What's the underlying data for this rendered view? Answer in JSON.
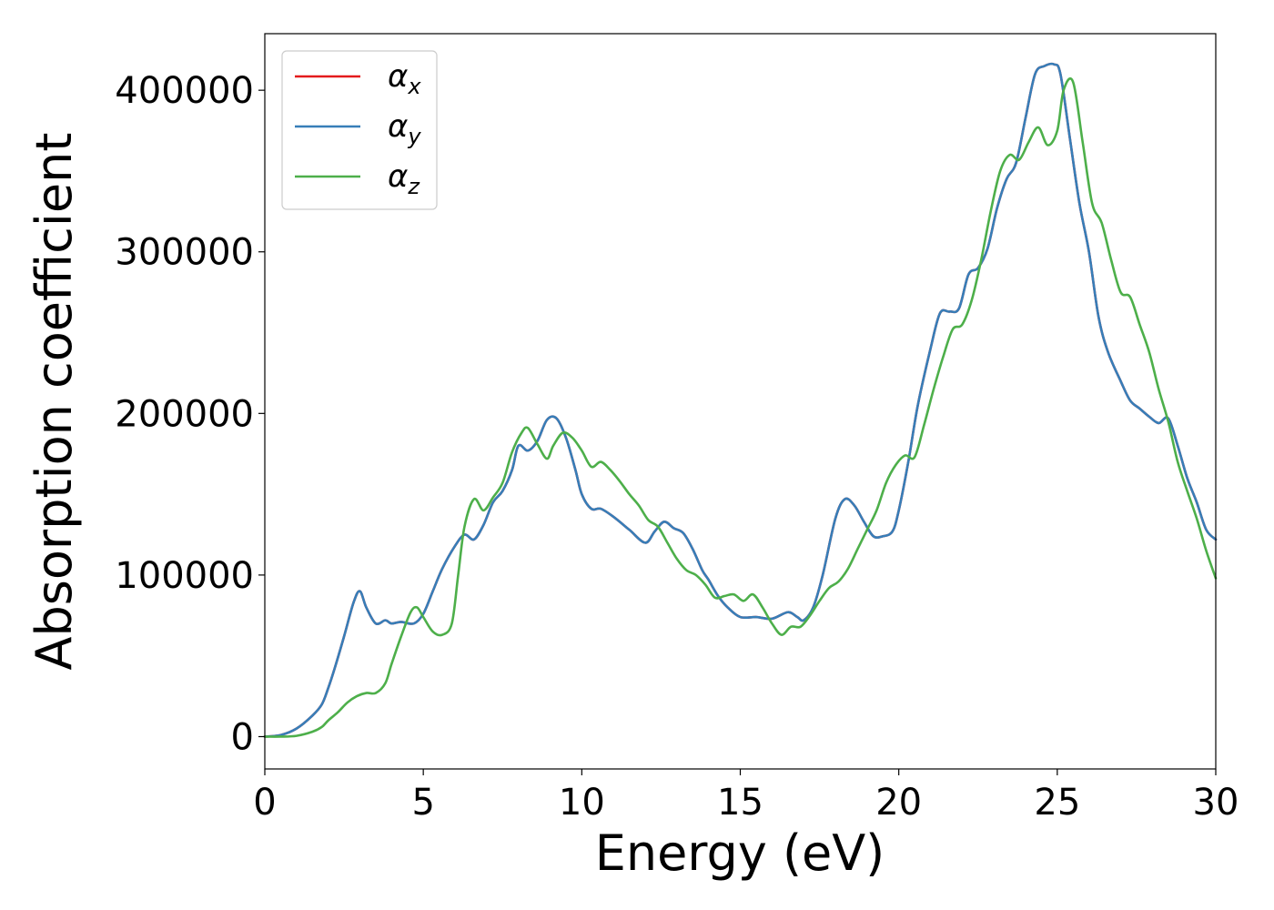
{
  "chart_data": {
    "type": "line",
    "title": "",
    "xlabel": "Energy (eV)",
    "ylabel": "Absorption coefficient",
    "xlim": [
      0,
      30
    ],
    "ylim": [
      -20000,
      435000
    ],
    "xticks": [
      0,
      5,
      10,
      15,
      20,
      25,
      30
    ],
    "yticks": [
      0,
      100000,
      200000,
      300000,
      400000
    ],
    "grid": false,
    "legend_position": "top-left",
    "series": [
      {
        "name": "αx",
        "symbol": "α",
        "subscript": "x",
        "color": "#e41a1c",
        "x": [
          0,
          0.5,
          1,
          1.5,
          1.8,
          2,
          2.2,
          2.5,
          2.8,
          3,
          3.2,
          3.5,
          3.8,
          4,
          4.3,
          4.7,
          5,
          5.3,
          5.6,
          6,
          6.3,
          6.6,
          6.9,
          7.2,
          7.5,
          7.8,
          8,
          8.3,
          8.6,
          8.9,
          9.2,
          9.5,
          9.8,
          10,
          10.3,
          10.6,
          11,
          11.5,
          12,
          12.3,
          12.6,
          12.9,
          13.2,
          13.5,
          13.8,
          14,
          14.3,
          14.6,
          15,
          15.5,
          16,
          16.5,
          16.8,
          17,
          17.3,
          17.6,
          18,
          18.3,
          18.6,
          18.9,
          19.2,
          19.5,
          19.8,
          20,
          20.3,
          20.6,
          21,
          21.3,
          21.6,
          21.9,
          22.2,
          22.5,
          22.8,
          23.1,
          23.4,
          23.7,
          24,
          24.3,
          24.6,
          24.9,
          25.1,
          25.4,
          25.7,
          26,
          26.3,
          26.6,
          27,
          27.3,
          27.6,
          27.9,
          28.2,
          28.5,
          28.8,
          29.1,
          29.4,
          29.7,
          30
        ],
        "values": [
          0,
          1000,
          5000,
          13000,
          20000,
          30000,
          42000,
          62000,
          83000,
          90000,
          80000,
          70000,
          72000,
          70000,
          71000,
          70000,
          76000,
          90000,
          104000,
          118000,
          125000,
          122000,
          131000,
          145000,
          152000,
          165000,
          180000,
          177000,
          183000,
          196000,
          197000,
          185000,
          165000,
          150000,
          141000,
          141000,
          136000,
          128000,
          120000,
          127000,
          133000,
          129000,
          126000,
          116000,
          103000,
          97000,
          87000,
          80000,
          74000,
          74000,
          73000,
          77000,
          74000,
          72000,
          80000,
          100000,
          135000,
          147000,
          143000,
          133000,
          124000,
          124000,
          127000,
          140000,
          170000,
          205000,
          240000,
          262000,
          263000,
          265000,
          286000,
          290000,
          302000,
          327000,
          345000,
          355000,
          383000,
          410000,
          415000,
          416000,
          410000,
          370000,
          330000,
          300000,
          260000,
          238000,
          220000,
          208000,
          203000,
          198000,
          194000,
          197000,
          180000,
          160000,
          145000,
          128000,
          122000
        ]
      },
      {
        "name": "αy",
        "symbol": "α",
        "subscript": "y",
        "color": "#377eb8",
        "x": [
          0,
          0.5,
          1,
          1.5,
          1.8,
          2,
          2.2,
          2.5,
          2.8,
          3,
          3.2,
          3.5,
          3.8,
          4,
          4.3,
          4.7,
          5,
          5.3,
          5.6,
          6,
          6.3,
          6.6,
          6.9,
          7.2,
          7.5,
          7.8,
          8,
          8.3,
          8.6,
          8.9,
          9.2,
          9.5,
          9.8,
          10,
          10.3,
          10.6,
          11,
          11.5,
          12,
          12.3,
          12.6,
          12.9,
          13.2,
          13.5,
          13.8,
          14,
          14.3,
          14.6,
          15,
          15.5,
          16,
          16.5,
          16.8,
          17,
          17.3,
          17.6,
          18,
          18.3,
          18.6,
          18.9,
          19.2,
          19.5,
          19.8,
          20,
          20.3,
          20.6,
          21,
          21.3,
          21.6,
          21.9,
          22.2,
          22.5,
          22.8,
          23.1,
          23.4,
          23.7,
          24,
          24.3,
          24.6,
          24.9,
          25.1,
          25.4,
          25.7,
          26,
          26.3,
          26.6,
          27,
          27.3,
          27.6,
          27.9,
          28.2,
          28.5,
          28.8,
          29.1,
          29.4,
          29.7,
          30
        ],
        "values": [
          0,
          1000,
          5000,
          13000,
          20000,
          30000,
          42000,
          62000,
          83000,
          90000,
          80000,
          70000,
          72000,
          70000,
          71000,
          70000,
          76000,
          90000,
          104000,
          118000,
          125000,
          122000,
          131000,
          145000,
          152000,
          165000,
          180000,
          177000,
          183000,
          196000,
          197000,
          185000,
          165000,
          150000,
          141000,
          141000,
          136000,
          128000,
          120000,
          127000,
          133000,
          129000,
          126000,
          116000,
          103000,
          97000,
          87000,
          80000,
          74000,
          74000,
          73000,
          77000,
          74000,
          72000,
          80000,
          100000,
          135000,
          147000,
          143000,
          133000,
          124000,
          124000,
          127000,
          140000,
          170000,
          205000,
          240000,
          262000,
          263000,
          265000,
          286000,
          290000,
          302000,
          327000,
          345000,
          355000,
          383000,
          410000,
          415000,
          416000,
          410000,
          370000,
          330000,
          300000,
          260000,
          238000,
          220000,
          208000,
          203000,
          198000,
          194000,
          197000,
          180000,
          160000,
          145000,
          128000,
          122000
        ]
      },
      {
        "name": "αz",
        "symbol": "α",
        "subscript": "z",
        "color": "#4daf4a",
        "x": [
          0,
          0.5,
          1,
          1.5,
          1.8,
          2,
          2.3,
          2.6,
          2.9,
          3.2,
          3.5,
          3.8,
          4,
          4.3,
          4.6,
          4.8,
          5,
          5.3,
          5.6,
          5.9,
          6.1,
          6.3,
          6.6,
          6.9,
          7.2,
          7.5,
          7.8,
          8.1,
          8.3,
          8.6,
          8.9,
          9.1,
          9.4,
          9.7,
          10,
          10.3,
          10.6,
          10.9,
          11.2,
          11.5,
          11.8,
          12.1,
          12.4,
          12.7,
          13,
          13.3,
          13.6,
          13.9,
          14.2,
          14.5,
          14.8,
          15.1,
          15.4,
          15.7,
          16,
          16.3,
          16.6,
          16.9,
          17.2,
          17.5,
          17.8,
          18.1,
          18.4,
          18.7,
          19,
          19.3,
          19.6,
          19.9,
          20.2,
          20.5,
          20.8,
          21.1,
          21.4,
          21.7,
          22,
          22.3,
          22.6,
          22.9,
          23.2,
          23.5,
          23.8,
          24.1,
          24.4,
          24.7,
          25,
          25.2,
          25.5,
          25.8,
          26.1,
          26.4,
          26.7,
          27,
          27.3,
          27.6,
          27.9,
          28.2,
          28.5,
          28.8,
          29.1,
          29.4,
          29.7,
          30
        ],
        "values": [
          0,
          0,
          500,
          3000,
          6000,
          10000,
          15000,
          21000,
          25000,
          27000,
          27000,
          33000,
          45000,
          62000,
          77000,
          80000,
          74000,
          65000,
          63000,
          70000,
          100000,
          130000,
          147000,
          140000,
          148000,
          157000,
          176000,
          188000,
          191000,
          181000,
          172000,
          180000,
          188000,
          185000,
          177000,
          167000,
          170000,
          165000,
          158000,
          150000,
          143000,
          134000,
          130000,
          120000,
          110000,
          103000,
          100000,
          94000,
          86000,
          87000,
          88000,
          84000,
          88000,
          80000,
          70000,
          63000,
          68000,
          68000,
          75000,
          84000,
          92000,
          96000,
          104000,
          116000,
          128000,
          140000,
          157000,
          168000,
          174000,
          173000,
          193000,
          215000,
          235000,
          252000,
          255000,
          270000,
          295000,
          325000,
          350000,
          360000,
          357000,
          368000,
          377000,
          366000,
          375000,
          400000,
          405000,
          368000,
          330000,
          318000,
          295000,
          275000,
          272000,
          255000,
          238000,
          215000,
          195000,
          170000,
          152000,
          135000,
          115000,
          98000
        ]
      }
    ]
  }
}
